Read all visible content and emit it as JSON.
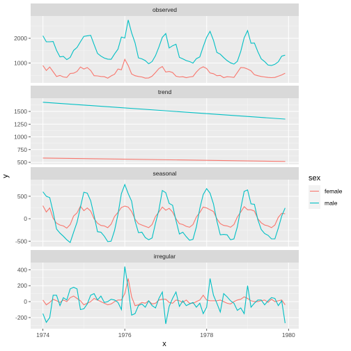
{
  "chart_data": {
    "type": "line",
    "xlabel": "x",
    "ylabel": "y",
    "xlim": [
      1973.7,
      1980.25
    ],
    "x_ticks": [
      1974,
      1976,
      1978,
      1980
    ],
    "x_tick_labels": [
      "1974",
      "1976",
      "1978",
      "1980"
    ],
    "x_start": 1974,
    "x_step": 0.08333,
    "legend": {
      "title": "sex",
      "position": "right"
    },
    "series": [
      {
        "name": "female",
        "color": "#F8766D"
      },
      {
        "name": "male",
        "color": "#00BFC4"
      }
    ],
    "panels": [
      {
        "title": "observed",
        "ylim": [
          200,
          2900
        ],
        "y_ticks": [
          1000,
          2000
        ],
        "y_tick_labels": [
          "1000",
          "2000"
        ],
        "values": {
          "female": [
            900,
            700,
            840,
            650,
            460,
            500,
            440,
            420,
            580,
            590,
            660,
            840,
            760,
            820,
            700,
            490,
            480,
            460,
            450,
            390,
            480,
            550,
            760,
            730,
            1150,
            900,
            560,
            490,
            460,
            440,
            390,
            400,
            470,
            620,
            780,
            860,
            640,
            660,
            620,
            470,
            440,
            450,
            410,
            440,
            460,
            640,
            780,
            850,
            780,
            600,
            570,
            490,
            500,
            410,
            450,
            440,
            420,
            620,
            820,
            810,
            760,
            690,
            530,
            490,
            460,
            440,
            420,
            410,
            420,
            470,
            520,
            590
          ],
          "male": [
            2100,
            1860,
            1860,
            1870,
            1510,
            1250,
            1270,
            1140,
            1230,
            1510,
            1630,
            1860,
            2080,
            2100,
            2120,
            1750,
            1390,
            1280,
            1200,
            1160,
            1150,
            1370,
            1560,
            2050,
            2010,
            2740,
            2220,
            1820,
            1210,
            1170,
            1100,
            970,
            1060,
            1300,
            1650,
            2040,
            2190,
            1610,
            1700,
            1760,
            1230,
            1170,
            1100,
            1060,
            1000,
            1180,
            1250,
            1660,
            2040,
            2280,
            1920,
            1430,
            1360,
            1220,
            1100,
            1010,
            960,
            1070,
            1470,
            2020,
            2310,
            1800,
            1810,
            1460,
            1170,
            1060,
            920,
            900,
            950,
            1050,
            1280,
            1320
          ]
        }
      },
      {
        "title": "trend",
        "ylim": [
          460,
          1760
        ],
        "y_ticks": [
          500,
          750,
          1000,
          1250,
          1500
        ],
        "y_tick_labels": [
          "500",
          "750",
          "1000",
          "1250",
          "1500"
        ],
        "values": {
          "female": [
            {
              "x": 1974,
              "y": 585
            },
            {
              "x": 1979.92,
              "y": 518
            }
          ],
          "male": [
            {
              "x": 1974,
              "y": 1680
            },
            {
              "x": 1979.92,
              "y": 1350
            }
          ]
        }
      },
      {
        "title": "seasonal",
        "ylim": [
          -620,
          870
        ],
        "y_ticks": [
          -500,
          0,
          500
        ],
        "y_tick_labels": [
          "-500",
          "0",
          "500"
        ],
        "values": {
          "female": [
            290,
            150,
            240,
            10,
            -100,
            -140,
            -160,
            -210,
            -130,
            60,
            130,
            280,
            180,
            240,
            170,
            0,
            -100,
            -150,
            -160,
            -200,
            -120,
            50,
            140,
            250,
            280,
            260,
            160,
            -10,
            -110,
            -140,
            -170,
            -200,
            -130,
            50,
            150,
            260,
            190,
            230,
            150,
            0,
            -110,
            -130,
            -170,
            -190,
            -130,
            40,
            140,
            260,
            240,
            200,
            160,
            0,
            -110,
            -150,
            -160,
            -190,
            -130,
            40,
            150,
            270,
            200,
            200,
            170,
            0,
            -90,
            -140,
            -160,
            -200,
            -140,
            30,
            120,
            110
          ],
          "male": [
            600,
            500,
            470,
            150,
            -230,
            -320,
            -390,
            -470,
            -530,
            -300,
            -80,
            260,
            590,
            570,
            400,
            70,
            -290,
            -300,
            -390,
            -510,
            -500,
            -260,
            100,
            560,
            760,
            560,
            390,
            -50,
            -310,
            -300,
            -420,
            -470,
            -430,
            -100,
            200,
            630,
            580,
            340,
            300,
            -40,
            -340,
            -300,
            -400,
            -480,
            -460,
            -180,
            230,
            540,
            670,
            570,
            330,
            -50,
            -360,
            -350,
            -360,
            -470,
            -450,
            -180,
            230,
            610,
            640,
            330,
            320,
            -20,
            -240,
            -330,
            -370,
            -450,
            -450,
            -210,
            60,
            240
          ]
        }
      },
      {
        "title": "irregular",
        "ylim": [
          -340,
          490
        ],
        "y_ticks": [
          -200,
          0,
          200,
          400
        ],
        "y_tick_labels": [
          "-200",
          "0",
          "200",
          "400"
        ],
        "values": {
          "female": [
            20,
            -40,
            -10,
            30,
            10,
            -10,
            20,
            0,
            50,
            70,
            40,
            10,
            -40,
            -20,
            0,
            40,
            20,
            0,
            -20,
            -40,
            -30,
            0,
            20,
            20,
            100,
            290,
            60,
            -50,
            -40,
            -10,
            -20,
            10,
            -30,
            -20,
            20,
            30,
            30,
            -10,
            -20,
            20,
            10,
            -10,
            20,
            -20,
            -20,
            0,
            20,
            80,
            20,
            10,
            10,
            10,
            20,
            0,
            -20,
            -30,
            0,
            20,
            30,
            60,
            40,
            10,
            0,
            0,
            10,
            20,
            -10,
            30,
            0,
            10,
            20,
            -40
          ],
          "male": [
            -150,
            -260,
            -200,
            80,
            80,
            -50,
            50,
            20,
            160,
            180,
            160,
            -100,
            -90,
            -30,
            80,
            100,
            20,
            70,
            -10,
            0,
            30,
            20,
            -10,
            -100,
            440,
            170,
            -170,
            -150,
            -50,
            -30,
            -70,
            10,
            -50,
            -80,
            40,
            120,
            -280,
            -60,
            40,
            120,
            -60,
            10,
            -50,
            -30,
            -10,
            -70,
            -20,
            -150,
            -70,
            290,
            80,
            -20,
            -130,
            100,
            60,
            10,
            -20,
            -110,
            -80,
            -150,
            200,
            -70,
            -20,
            20,
            20,
            -40,
            10,
            50,
            40,
            -50,
            10,
            -270
          ]
        }
      }
    ]
  }
}
